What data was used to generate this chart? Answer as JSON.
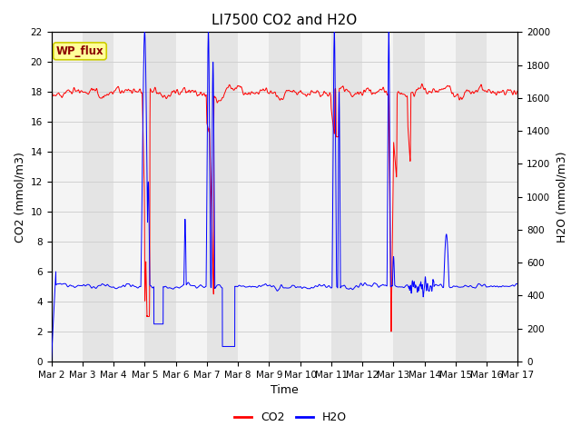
{
  "title": "LI7500 CO2 and H2O",
  "xlabel": "Time",
  "ylabel_left": "CO2 (mmol/m3)",
  "ylabel_right": "H2O (mmol/m3)",
  "co2_ylim": [
    0,
    22
  ],
  "h2o_ylim": [
    0,
    2000
  ],
  "co2_color": "#ff0000",
  "h2o_color": "#0000ff",
  "bg_color": "#ffffff",
  "grid_color": "#d0d0d0",
  "annotation_text": "WP_flux",
  "annotation_bg": "#ffff99",
  "annotation_border": "#cccc00",
  "xtick_labels": [
    "Mar 2",
    "Mar 3",
    "Mar 4",
    "Mar 5",
    "Mar 6",
    "Mar 7",
    "Mar 8",
    "Mar 9",
    "Mar 10",
    "Mar 11",
    "Mar 12",
    "Mar 13",
    "Mar 14",
    "Mar 15",
    "Mar 16",
    "Mar 17"
  ],
  "title_fontsize": 11,
  "label_fontsize": 9,
  "tick_fontsize": 7.5,
  "legend_fontsize": 9,
  "alternating_bg1": "#e4e4e4",
  "alternating_bg2": "#f4f4f4"
}
